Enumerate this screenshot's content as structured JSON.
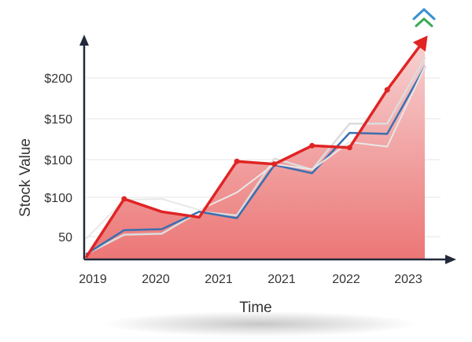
{
  "chart_data": {
    "type": "area",
    "title": "",
    "xlabel": "Time",
    "ylabel": "Stock Value",
    "x_tick_labels": [
      "2019",
      "2020",
      "2021",
      "2021",
      "2022",
      "2023"
    ],
    "y_tick_labels": [
      "50",
      "$100",
      "$100",
      "$150",
      "$200"
    ],
    "grid": true,
    "legend": "none",
    "series": [
      {
        "values": [
          36,
          57,
          58,
          82,
          78,
          140,
          128,
          178,
          178,
          250
        ]
      },
      {
        "values": [
          36,
          62,
          63,
          82,
          75,
          133,
          124,
          168,
          167,
          240
        ]
      },
      {
        "values": [
          53,
          95,
          96,
          84,
          103,
          134,
          128,
          158,
          153,
          240
        ]
      },
      {
        "values": [
          33,
          96,
          82,
          76,
          137,
          134,
          154,
          152,
          215,
          270
        ]
      }
    ],
    "colors": {
      "main": "#e02424",
      "area_top": "#f7d3d3",
      "area_bottom": "#ec7676",
      "secondary": "#3a6fb0",
      "light": "#dcdcdc",
      "axis": "#222a3a",
      "grid": "#e6e6e6",
      "icon_blue": "#3a8fd0",
      "icon_green": "#3aaa55"
    },
    "icons": [
      "double-chevron-up-icon"
    ]
  }
}
